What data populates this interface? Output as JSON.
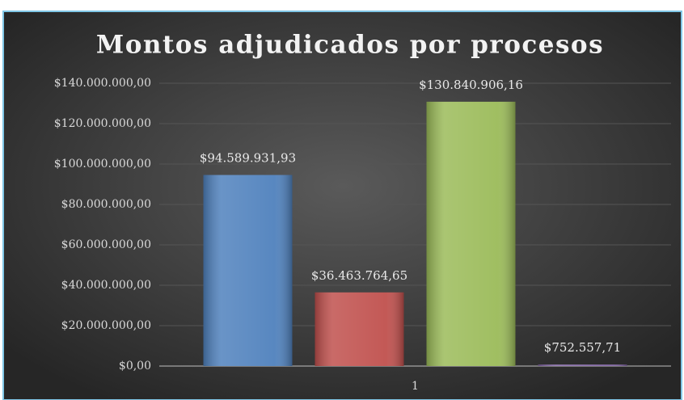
{
  "chart_data": {
    "type": "bar",
    "title": "Montos adjudicados por procesos",
    "categories": [
      "1"
    ],
    "series": [
      {
        "color": "#4f81bd",
        "values": [
          94589931.93
        ],
        "value_labels": [
          "$94.589.931,93"
        ]
      },
      {
        "color": "#c0504d",
        "values": [
          36463764.65
        ],
        "value_labels": [
          "$36.463.764,65"
        ]
      },
      {
        "color": "#9bbb59",
        "values": [
          130840906.16
        ],
        "value_labels": [
          "$130.840.906,16"
        ]
      },
      {
        "color": "#8064a2",
        "values": [
          752557.71
        ],
        "value_labels": [
          "$752.557,71"
        ]
      }
    ],
    "ylim": [
      0,
      140000000
    ],
    "yticks": [
      {
        "value": 0,
        "label": "$0,00"
      },
      {
        "value": 20000000,
        "label": "$20.000.000,00"
      },
      {
        "value": 40000000,
        "label": "$40.000.000,00"
      },
      {
        "value": 60000000,
        "label": "$60.000.000,00"
      },
      {
        "value": 80000000,
        "label": "$80.000.000,00"
      },
      {
        "value": 100000000,
        "label": "$100.000.000,00"
      },
      {
        "value": 120000000,
        "label": "$120.000.000,00"
      },
      {
        "value": 140000000,
        "label": "$140.000.000,00"
      }
    ],
    "grid": true
  }
}
